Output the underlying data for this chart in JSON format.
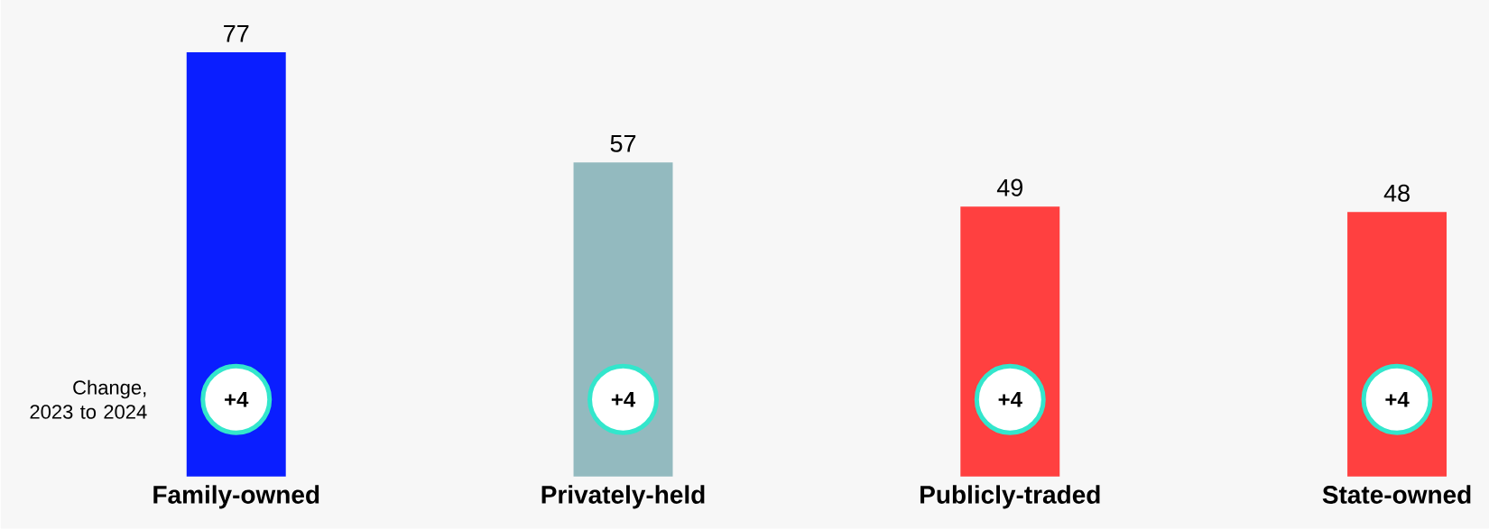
{
  "chart_data": {
    "type": "bar",
    "categories": [
      "Family-owned",
      "Privately-held",
      "Publicly-traded",
      "State-owned"
    ],
    "values": [
      77,
      57,
      49,
      48
    ],
    "colors": [
      "#0a1eff",
      "#93babf",
      "#ff4040",
      "#ff4040"
    ],
    "data_labels": true,
    "annotations": [
      "Change, 2023 to 2024",
      "+4",
      "+4",
      "+4",
      "+4"
    ]
  }
}
